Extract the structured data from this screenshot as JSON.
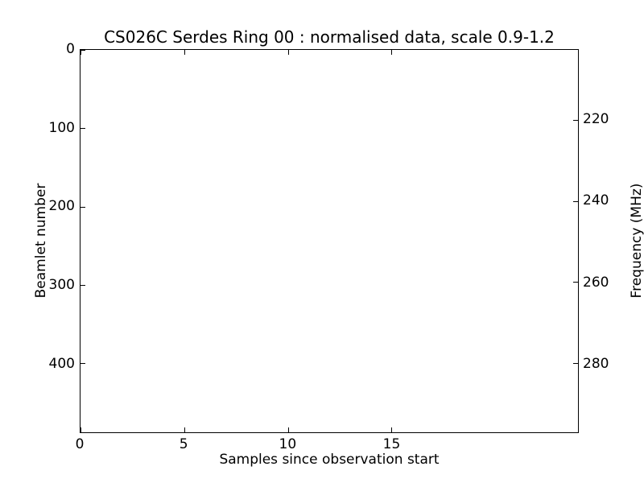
{
  "figure": {
    "background_color": "#ffffff",
    "axes_color": "#000000",
    "text_color": "#000000"
  },
  "chart_data": {
    "type": "heatmap",
    "title": "CS026C Serdes Ring 00 : normalised data, scale 0.9-1.2",
    "xlabel": "Samples since observation start",
    "ylabel": "Beamlet number",
    "ylabel_right": "Frequency (MHz)",
    "x_ticks": [
      0,
      5,
      10,
      15
    ],
    "xlim": [
      0,
      24
    ],
    "y_ticks_left": [
      0,
      100,
      200,
      300,
      400
    ],
    "ylim_left": [
      0,
      488
    ],
    "y_axis_inverted": true,
    "y_ticks_right": [
      220,
      240,
      260,
      280
    ],
    "ylim_right": [
      202.8,
      297.0
    ],
    "grid": false,
    "legend": null,
    "tick_direction": "in",
    "normalisation_scale": [
      0.9,
      1.2
    ],
    "values": "uniform blank — plot interior renders entirely white, no visible data cells",
    "colors": {
      "background": "#ffffff",
      "axes": "#000000",
      "text": "#000000"
    }
  }
}
